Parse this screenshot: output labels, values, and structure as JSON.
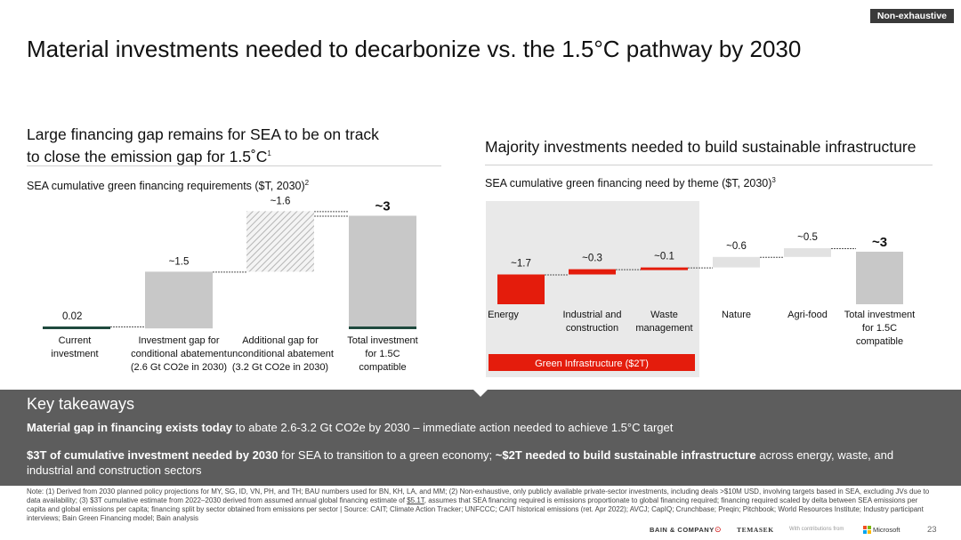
{
  "badge": "Non-exhaustive",
  "title": "Material investments needed to decarbonize vs. the 1.5°C pathway by 2030",
  "left": {
    "subtitle_line1": "Large financing gap remains for SEA to be on track",
    "subtitle_line2_text": "to close the emission gap for 1.5˚C",
    "subtitle_line2_sup": "1",
    "caption_text": "SEA cumulative green financing requirements ($T, 2030)",
    "caption_sup": "2"
  },
  "right": {
    "subtitle": "Majority investments needed to build sustainable infrastructure",
    "caption_text": "SEA cumulative green financing need by theme ($T, 2030)",
    "caption_sup": "3",
    "bracket_label": "Green Infrastructure ($2T)"
  },
  "chart_data": [
    {
      "type": "bar",
      "subtype": "waterfall",
      "categories": [
        [
          "Current",
          "investment"
        ],
        [
          "Investment gap for",
          "conditional abatement",
          "(2.6 Gt CO2e in 2030)"
        ],
        [
          "Additional gap for",
          "unconditional abatement",
          "(3.2 Gt CO2e in 2030)"
        ],
        [
          "Total investment",
          "for 1.5C",
          "compatible"
        ]
      ],
      "values": [
        0.02,
        1.5,
        1.6,
        3.0
      ],
      "data_labels": [
        "0.02",
        "~1.5",
        "~1.6",
        "~3"
      ],
      "bar_kinds": [
        "base",
        "step",
        "step-hatched",
        "total"
      ],
      "ylim": [
        0,
        3.1
      ],
      "colors": {
        "base": "#1f4a3e",
        "step": "#c8c8c8",
        "total": "#c8c8c8",
        "hatch": "#bbbbbb"
      }
    },
    {
      "type": "bar",
      "subtype": "waterfall",
      "categories": [
        [
          "Energy"
        ],
        [
          "Industrial and",
          "construction"
        ],
        [
          "Waste",
          "management"
        ],
        [
          "Nature"
        ],
        [
          "Agri-food"
        ],
        [
          "Total investment",
          "for 1.5C",
          "compatible"
        ]
      ],
      "values": [
        1.7,
        0.3,
        0.1,
        0.6,
        0.5,
        3.0
      ],
      "data_labels": [
        "~1.7",
        "~0.3",
        "~0.1",
        "~0.6",
        "~0.5",
        "~3"
      ],
      "bar_kinds": [
        "red",
        "red",
        "red",
        "light",
        "light",
        "total"
      ],
      "ylim": [
        0,
        3.1
      ],
      "colors": {
        "red": "#e41c0c",
        "light": "#e2e2e2",
        "total": "#c8c8c8",
        "highlight": "#e9e9e9"
      }
    }
  ],
  "takeaways": {
    "heading": "Key takeaways",
    "p1_bold": "Material gap in financing exists today",
    "p1_rest": " to abate 2.6-3.2 Gt CO2e by 2030 – immediate action needed to achieve 1.5°C target",
    "p2_bold1": "$3T of cumulative investment needed by 2030",
    "p2_mid": " for SEA to transition to a green economy; ",
    "p2_bold2": "~$2T needed to build sustainable infrastructure",
    "p2_end": " across energy, waste, and industrial and construction sectors"
  },
  "note": {
    "part1": "Note: (1) Derived from 2030 planned policy projections for MY, SG, ID, VN, PH, and TH; BAU numbers used for BN, KH, LA, and MM; (2) Non-exhaustive, only publicly available private-sector investments, including deals >$10M USD, involving targets based in SEA, excluding JVs due to data availability; (3) $3T cumulative estimate from 2022–2030 derived from assumed annual global financing estimate of ",
    "link": "$5.1T",
    "part2": ", assumes that SEA financing required is emissions proportionate to global financing required; financing required scaled by delta between SEA emissions per capita and global emissions per capita; financing split by sector obtained from emissions per sector | Source: CAIT; Climate Action Tracker; UNFCCC; CAIT historical emissions (ret. Apr 2022); AVCJ; CapIQ; Crunchbase; Preqin; Pitchbook; World Resources Institute; Industry participant interviews; Bain Green Financing model; Bain analysis"
  },
  "footer": {
    "bain": "BAIN & COMPANY",
    "temasek": "TEMASEK",
    "contrib": "With contributions from",
    "microsoft": "Microsoft",
    "page": "23"
  }
}
